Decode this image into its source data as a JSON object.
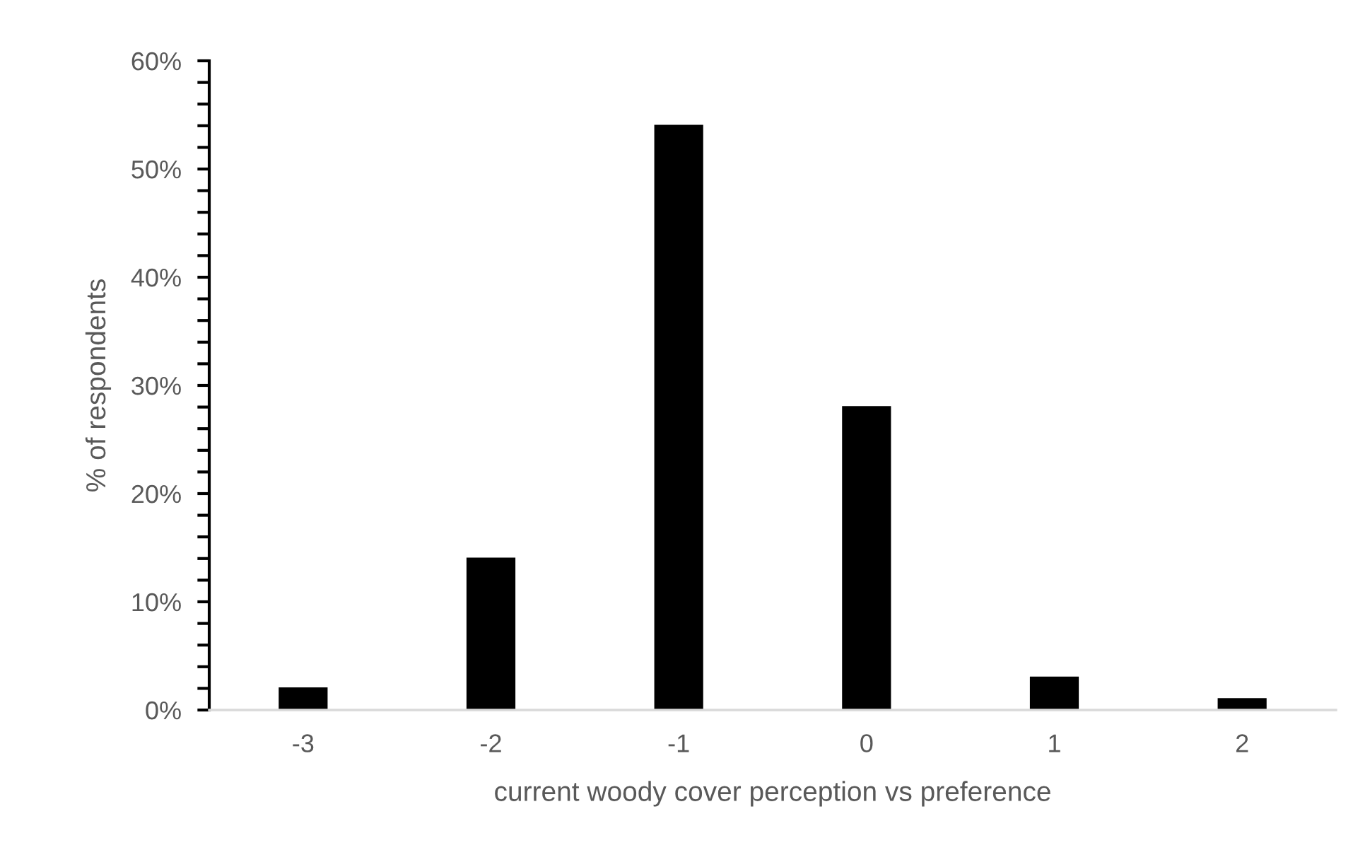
{
  "chart_data": {
    "type": "bar",
    "xlabel": "current woody cover perception vs preference",
    "ylabel": "% of respondents",
    "categories": [
      "-3",
      "-2",
      "-1",
      "0",
      "1",
      "2"
    ],
    "values": [
      2,
      14,
      54,
      28,
      3,
      1
    ],
    "color": "#000000",
    "ylim": [
      0,
      60
    ],
    "yticks": [
      {
        "value": 0,
        "label": "0%"
      },
      {
        "value": 2,
        "label": null
      },
      {
        "value": 4,
        "label": null
      },
      {
        "value": 6,
        "label": null
      },
      {
        "value": 8,
        "label": null
      },
      {
        "value": 10,
        "label": "10%"
      },
      {
        "value": 12,
        "label": null
      },
      {
        "value": 14,
        "label": null
      },
      {
        "value": 16,
        "label": null
      },
      {
        "value": 18,
        "label": null
      },
      {
        "value": 20,
        "label": "20%"
      },
      {
        "value": 22,
        "label": null
      },
      {
        "value": 24,
        "label": null
      },
      {
        "value": 26,
        "label": null
      },
      {
        "value": 28,
        "label": null
      },
      {
        "value": 30,
        "label": "30%"
      },
      {
        "value": 32,
        "label": null
      },
      {
        "value": 34,
        "label": null
      },
      {
        "value": 36,
        "label": null
      },
      {
        "value": 38,
        "label": null
      },
      {
        "value": 40,
        "label": "40%"
      },
      {
        "value": 42,
        "label": null
      },
      {
        "value": 44,
        "label": null
      },
      {
        "value": 46,
        "label": null
      },
      {
        "value": 48,
        "label": null
      },
      {
        "value": 50,
        "label": "50%"
      },
      {
        "value": 52,
        "label": null
      },
      {
        "value": 54,
        "label": null
      },
      {
        "value": 56,
        "label": null
      },
      {
        "value": 58,
        "label": null
      },
      {
        "value": 60,
        "label": "60%"
      }
    ],
    "grid": false
  }
}
